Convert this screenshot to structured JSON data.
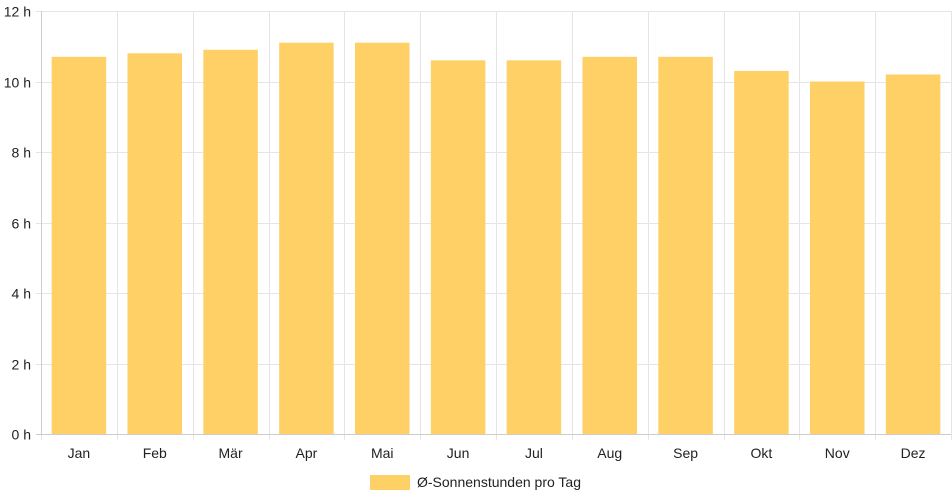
{
  "chart_data": {
    "type": "bar",
    "categories": [
      "Jan",
      "Feb",
      "Mär",
      "Apr",
      "Mai",
      "Jun",
      "Jul",
      "Aug",
      "Sep",
      "Okt",
      "Nov",
      "Dez"
    ],
    "series": [
      {
        "name": "Ø-Sonnenstunden pro Tag",
        "values": [
          10.7,
          10.8,
          10.9,
          11.1,
          11.1,
          10.6,
          10.6,
          10.7,
          10.7,
          10.3,
          10.0,
          10.2
        ],
        "color": "#fed066"
      }
    ],
    "ylim": [
      0,
      12
    ],
    "yticks": [
      {
        "value": 0,
        "label": "0 h"
      },
      {
        "value": 2,
        "label": "2 h"
      },
      {
        "value": 4,
        "label": "4 h"
      },
      {
        "value": 6,
        "label": "6 h"
      },
      {
        "value": 8,
        "label": "8 h"
      },
      {
        "value": 10,
        "label": "10 h"
      },
      {
        "value": 12,
        "label": "12 h"
      }
    ],
    "grid": true,
    "legend_position": "bottom",
    "grid_color": "#e5e5e5",
    "axis_color": "#cccccc",
    "text_color": "#222222"
  }
}
